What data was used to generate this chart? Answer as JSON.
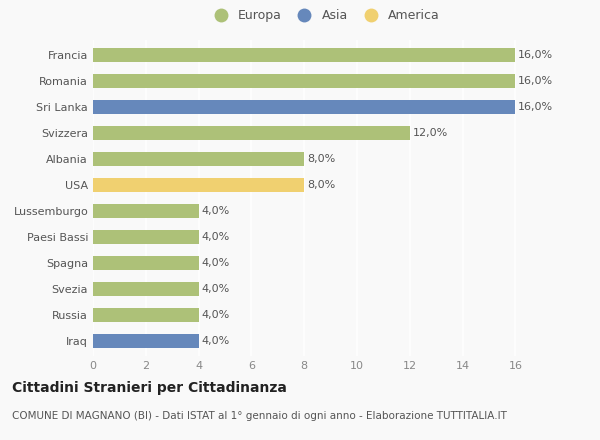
{
  "countries": [
    "Francia",
    "Romania",
    "Sri Lanka",
    "Svizzera",
    "Albania",
    "USA",
    "Lussemburgo",
    "Paesi Bassi",
    "Spagna",
    "Svezia",
    "Russia",
    "Iraq"
  ],
  "values": [
    16.0,
    16.0,
    16.0,
    12.0,
    8.0,
    8.0,
    4.0,
    4.0,
    4.0,
    4.0,
    4.0,
    4.0
  ],
  "continents": [
    "Europa",
    "Europa",
    "Asia",
    "Europa",
    "Europa",
    "America",
    "Europa",
    "Europa",
    "Europa",
    "Europa",
    "Europa",
    "Asia"
  ],
  "colors": {
    "Europa": "#adc178",
    "Asia": "#6688bb",
    "America": "#f0d070"
  },
  "xlim": [
    0,
    17.5
  ],
  "xticks": [
    0,
    2,
    4,
    6,
    8,
    10,
    12,
    14,
    16
  ],
  "title": "Cittadini Stranieri per Cittadinanza",
  "subtitle": "COMUNE DI MAGNANO (BI) - Dati ISTAT al 1° gennaio di ogni anno - Elaborazione TUTTITALIA.IT",
  "legend_order": [
    "Europa",
    "Asia",
    "America"
  ],
  "bg_color": "#f9f9f9",
  "bar_height": 0.55,
  "label_fontsize": 8,
  "tick_fontsize": 8,
  "title_fontsize": 10,
  "subtitle_fontsize": 7.5
}
